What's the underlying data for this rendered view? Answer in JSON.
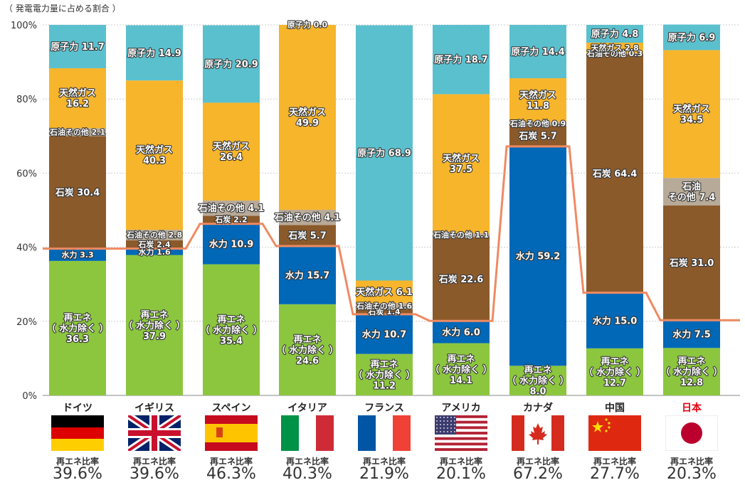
{
  "chart_data": {
    "type": "bar",
    "stacked": true,
    "unit_label": "（ 発電電力量に占める割合 ）",
    "ylim": [
      0,
      100
    ],
    "yticks": [
      "0%",
      "20%",
      "40%",
      "60%",
      "80%",
      "100%"
    ],
    "grid": true,
    "categories": [
      "ドイツ",
      "イギリス",
      "スペイン",
      "イタリア",
      "フランス",
      "アメリカ",
      "カナダ",
      "中国",
      "日本"
    ],
    "highlight_category": "日本",
    "series": [
      {
        "key": "re",
        "color": "#8cc63f",
        "values": [
          36.3,
          37.9,
          35.4,
          24.6,
          11.2,
          14.1,
          8.0,
          12.7,
          12.8
        ]
      },
      {
        "key": "hydro",
        "color": "#0068b7",
        "values": [
          3.3,
          1.6,
          10.9,
          15.7,
          10.7,
          6.0,
          59.2,
          15.0,
          7.5
        ]
      },
      {
        "key": "coal",
        "color": "#8b5a2b",
        "values": [
          30.4,
          2.4,
          2.2,
          5.7,
          1.4,
          22.6,
          5.7,
          64.4,
          31.0
        ]
      },
      {
        "key": "oil",
        "color": "#b8aa98",
        "values": [
          2.1,
          2.8,
          4.1,
          4.1,
          1.6,
          1.1,
          0.9,
          0.3,
          7.4
        ]
      },
      {
        "key": "gas",
        "color": "#f7b52c",
        "values": [
          16.2,
          40.3,
          26.4,
          49.9,
          6.1,
          37.5,
          11.8,
          2.8,
          34.5
        ]
      },
      {
        "key": "nuclear",
        "color": "#5bc0ce",
        "values": [
          11.7,
          14.9,
          20.9,
          0.0,
          68.9,
          18.7,
          14.4,
          4.8,
          6.9
        ]
      }
    ],
    "segment_labels": [
      [
        "再エネ\n（ 水力除く ）\n36.3",
        "水力 3.3",
        "石炭 30.4",
        "石油その他 2.1",
        "天然ガス\n16.2",
        "原子力 11.7"
      ],
      [
        "再エネ\n（ 水力除く ）\n37.9",
        "水力 1.6",
        "石炭 2.4",
        "石油その他 2.8",
        "天然ガス\n40.3",
        "原子力 14.9"
      ],
      [
        "再エネ\n（ 水力除く ）\n35.4",
        "水力 10.9",
        "石炭 2.2",
        "石油その他 4.1",
        "天然ガス\n26.4",
        "原子力 20.9"
      ],
      [
        "再エネ\n（ 水力除く ）\n24.6",
        "水力 15.7",
        "石炭 5.7",
        "石油その他 4.1",
        "天然ガス\n49.9",
        "原子力 0.0"
      ],
      [
        "再エネ\n（ 水力除く ）\n11.2",
        "水力 10.7",
        "石炭 1.4",
        "石油その他 1.6",
        "天然ガス 6.1",
        "原子力 68.9"
      ],
      [
        "再エネ\n（ 水力除く ）\n14.1",
        "水力 6.0",
        "石炭 22.6",
        "石油その他 1.1",
        "天然ガス\n37.5",
        "原子力 18.7"
      ],
      [
        "再エネ\n（ 水力除く ）\n8.0",
        "水力 59.2",
        "石炭 5.7",
        "石油その他 0.9",
        "天然ガス\n11.8",
        "原子力 14.4"
      ],
      [
        "再エネ\n（ 水力除く ）\n12.7",
        "水力 15.0",
        "石炭 64.4",
        "石油その他 0.3",
        "天然ガス 2.8",
        "原子力 4.8"
      ],
      [
        "再エネ\n（ 水力除く ）\n12.8",
        "水力 7.5",
        "石炭 31.0",
        "石油\nその他 7.4",
        "天然ガス\n34.5",
        "原子力 6.9"
      ]
    ],
    "line": {
      "color": "#ef8a62",
      "description": "再エネ比率",
      "values": [
        39.6,
        39.6,
        46.3,
        40.3,
        21.9,
        20.1,
        67.2,
        27.7,
        20.3
      ]
    },
    "ratio_title": "再エネ比率",
    "ratio_values": [
      "39.6%",
      "39.6%",
      "46.3%",
      "40.3%",
      "21.9%",
      "20.1%",
      "67.2%",
      "27.7%",
      "20.3%"
    ],
    "flags": [
      "germany",
      "uk",
      "spain",
      "italy",
      "france",
      "usa",
      "canada",
      "china",
      "japan"
    ]
  }
}
